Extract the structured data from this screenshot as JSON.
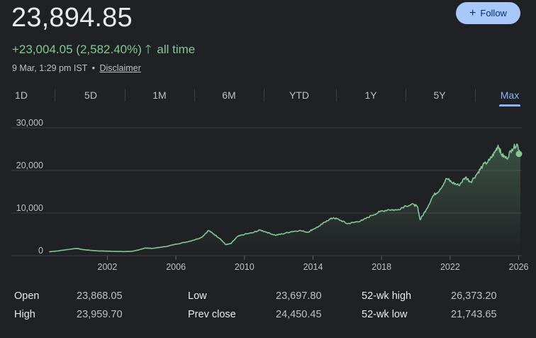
{
  "quote": {
    "price": "23,894.85",
    "change": "+23,004.05 (2,582.40%)",
    "arrow_icon": "arrow-up-icon",
    "arrow_glyph": "🡑",
    "period": "all time",
    "timestamp": "9 Mar, 1:29 pm IST",
    "separator": "•",
    "disclaimer": "Disclaimer"
  },
  "follow": {
    "icon": "plus-icon",
    "glyph": "+",
    "label": "Follow"
  },
  "tabs": [
    {
      "label": "1D"
    },
    {
      "label": "5D"
    },
    {
      "label": "1M"
    },
    {
      "label": "6M"
    },
    {
      "label": "YTD"
    },
    {
      "label": "1Y"
    },
    {
      "label": "5Y"
    },
    {
      "label": "Max",
      "active": true
    }
  ],
  "colors": {
    "background": "#202124",
    "positive": "#81c995",
    "line": "#81c995",
    "accent": "#8ab4f8",
    "follow_bg": "#a8c7fa",
    "grid": "#3c4043"
  },
  "chart_data": {
    "type": "area",
    "y_ticks": [
      "30,000",
      "20,000",
      "10,000",
      "0"
    ],
    "x_ticks": [
      "2002",
      "2006",
      "2010",
      "2014",
      "2018",
      "2022",
      "2026"
    ],
    "xlim": [
      1998.3,
      2026.1
    ],
    "ylim": [
      0,
      30000
    ],
    "grid": true,
    "series": [
      {
        "values": [
          [
            1998.6,
            900
          ],
          [
            1999.2,
            1150
          ],
          [
            1999.8,
            1500
          ],
          [
            2000.2,
            1700
          ],
          [
            2000.6,
            1400
          ],
          [
            2001.0,
            1250
          ],
          [
            2001.5,
            1100
          ],
          [
            2002.0,
            1050
          ],
          [
            2002.5,
            1000
          ],
          [
            2003.0,
            950
          ],
          [
            2003.4,
            1000
          ],
          [
            2003.8,
            1300
          ],
          [
            2004.2,
            1800
          ],
          [
            2004.6,
            1700
          ],
          [
            2005.0,
            1900
          ],
          [
            2005.5,
            2200
          ],
          [
            2006.0,
            2700
          ],
          [
            2006.5,
            3100
          ],
          [
            2007.0,
            3600
          ],
          [
            2007.5,
            4300
          ],
          [
            2007.9,
            5900
          ],
          [
            2008.2,
            5100
          ],
          [
            2008.6,
            3900
          ],
          [
            2008.9,
            2600
          ],
          [
            2009.2,
            2800
          ],
          [
            2009.6,
            4500
          ],
          [
            2010.0,
            5000
          ],
          [
            2010.5,
            5400
          ],
          [
            2010.9,
            6000
          ],
          [
            2011.3,
            5500
          ],
          [
            2011.8,
            4800
          ],
          [
            2012.2,
            5100
          ],
          [
            2012.7,
            5600
          ],
          [
            2013.2,
            5900
          ],
          [
            2013.7,
            5500
          ],
          [
            2014.0,
            6200
          ],
          [
            2014.4,
            7000
          ],
          [
            2014.8,
            8200
          ],
          [
            2015.2,
            8900
          ],
          [
            2015.6,
            8300
          ],
          [
            2016.0,
            7500
          ],
          [
            2016.4,
            7800
          ],
          [
            2016.9,
            8300
          ],
          [
            2017.4,
            9400
          ],
          [
            2017.9,
            10300
          ],
          [
            2018.4,
            10800
          ],
          [
            2018.9,
            10700
          ],
          [
            2019.4,
            11700
          ],
          [
            2019.9,
            12000
          ],
          [
            2020.1,
            11400
          ],
          [
            2020.25,
            8400
          ],
          [
            2020.6,
            10800
          ],
          [
            2021.0,
            14000
          ],
          [
            2021.4,
            15500
          ],
          [
            2021.8,
            18100
          ],
          [
            2022.1,
            17200
          ],
          [
            2022.5,
            16500
          ],
          [
            2022.9,
            18400
          ],
          [
            2023.2,
            17300
          ],
          [
            2023.6,
            19400
          ],
          [
            2023.9,
            21100
          ],
          [
            2024.3,
            22400
          ],
          [
            2024.6,
            24200
          ],
          [
            2024.8,
            25900
          ],
          [
            2025.0,
            23700
          ],
          [
            2025.3,
            22800
          ],
          [
            2025.6,
            25000
          ],
          [
            2025.9,
            26200
          ],
          [
            2026.1,
            23894.85
          ]
        ]
      }
    ]
  },
  "stats": [
    [
      {
        "label": "Open",
        "value": "23,868.05"
      },
      {
        "label": "Low",
        "value": "23,697.80"
      },
      {
        "label": "52-wk high",
        "value": "26,373.20"
      }
    ],
    [
      {
        "label": "High",
        "value": "23,959.70"
      },
      {
        "label": "Prev close",
        "value": "24,450.45"
      },
      {
        "label": "52-wk low",
        "value": "21,743.65"
      }
    ]
  ]
}
